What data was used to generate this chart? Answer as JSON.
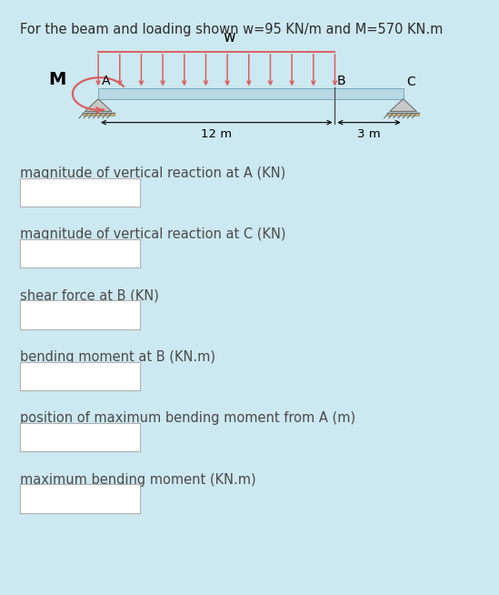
{
  "title": "For the beam and loading shown w=95 KN/m and M=570 KN.m",
  "title_fontsize": 10.5,
  "bg_color": "#cce8f0",
  "diagram_bg": "#daeef5",
  "beam_color": "#b0ccd8",
  "load_color": "#d96060",
  "labels": [
    "magnitude of vertical reaction at A (KN)",
    "magnitude of vertical reaction at C (KN)",
    "shear force at B (KN)",
    "bending moment at B (KN.m)",
    "position of maximum bending moment from A (m)",
    "maximum bending moment (KN.m)"
  ],
  "label_fontsize": 10.5,
  "w_label": "w",
  "M_label": "M",
  "A_label": "A",
  "B_label": "B",
  "C_label": "C",
  "dim1_label": "12 m",
  "dim2_label": "3 m",
  "title_color": "#2c2c2c",
  "label_color": "#4a4a4a"
}
